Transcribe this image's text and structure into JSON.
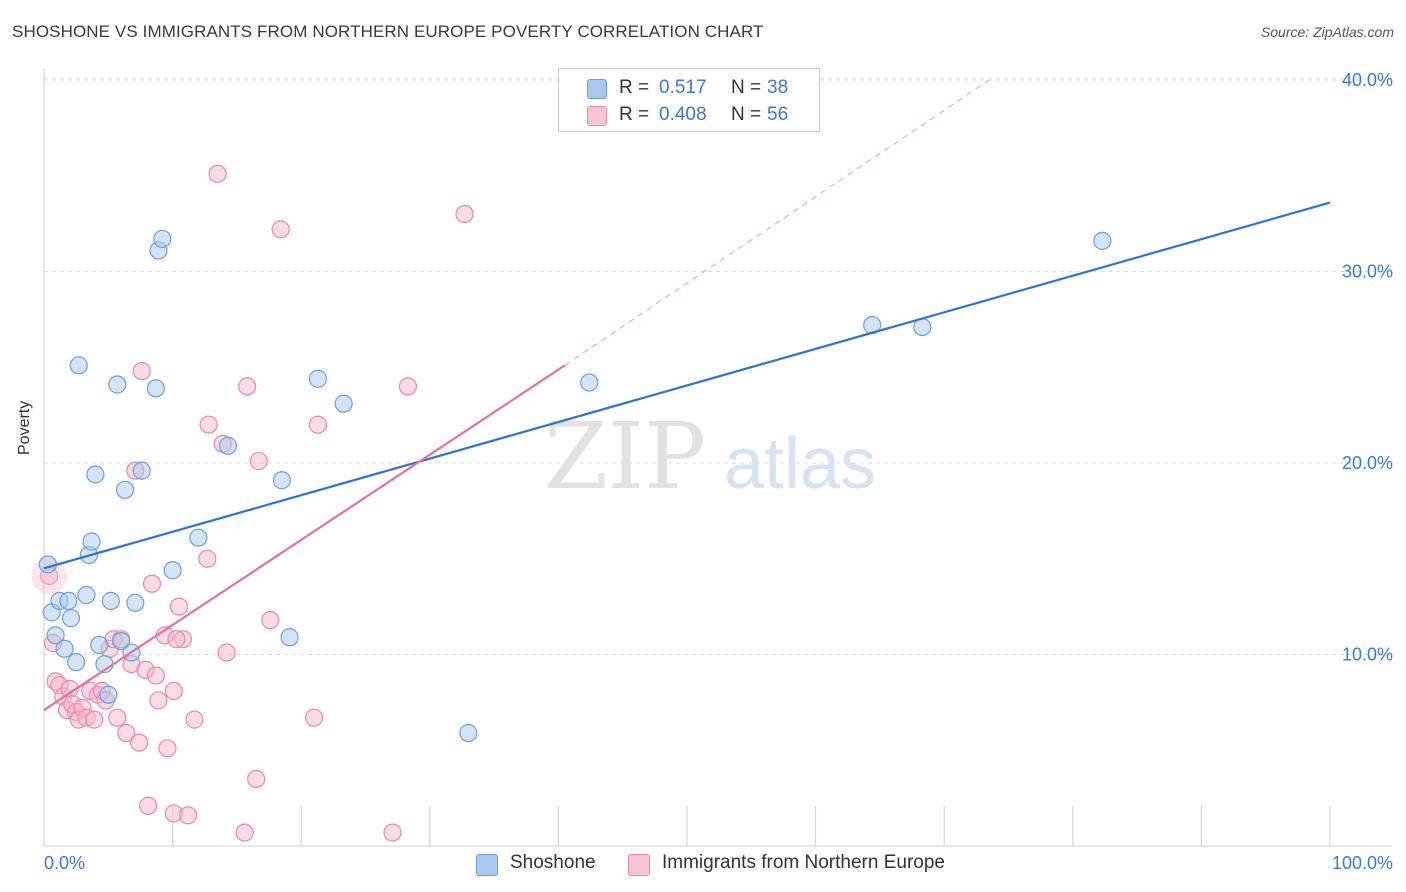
{
  "title": "SHOSHONE VS IMMIGRANTS FROM NORTHERN EUROPE POVERTY CORRELATION CHART",
  "source": "Source: ZipAtlas.com",
  "watermark": {
    "zip": "ZIP",
    "atlas": "atlas"
  },
  "legend_top": [
    {
      "r_label": "R =",
      "r_value": "0.517",
      "n_label": "N =",
      "n_value": "38"
    },
    {
      "r_label": "R =",
      "r_value": "0.408",
      "n_label": "N =",
      "n_value": "56"
    }
  ],
  "legend_bottom": [
    {
      "label": "Shoshone"
    },
    {
      "label": "Immigrants from Northern Europe"
    }
  ],
  "colors": {
    "blue_fill": "#a9c8f0",
    "blue_stroke": "#6d9fdd",
    "blue_line": "#2f72d0",
    "pink_fill": "#f7b8cc",
    "pink_stroke": "#e889a8",
    "pink_line": "#e8709a",
    "axis_text": "#3b78d8"
  },
  "chart_data": {
    "type": "scatter",
    "title": "SHOSHONE VS IMMIGRANTS FROM NORTHERN EUROPE POVERTY CORRELATION CHART",
    "xlabel": "",
    "ylabel": "Poverty",
    "xlim": [
      0,
      100
    ],
    "ylim": [
      0,
      40
    ],
    "x_tick_labels": [
      {
        "value": 0,
        "label": "0.0%"
      },
      {
        "value": 100,
        "label": "100.0%"
      }
    ],
    "y_tick_labels": [
      {
        "value": 10,
        "label": "10.0%"
      },
      {
        "value": 20,
        "label": "20.0%"
      },
      {
        "value": 30,
        "label": "30.0%"
      },
      {
        "value": 40,
        "label": "40.0%"
      }
    ],
    "series": [
      {
        "name": "Shoshone",
        "color": "blue",
        "points": [
          [
            0.3,
            14.7
          ],
          [
            0.6,
            12.2
          ],
          [
            0.9,
            11.0
          ],
          [
            1.2,
            12.8
          ],
          [
            1.6,
            10.3
          ],
          [
            1.9,
            12.8
          ],
          [
            2.1,
            11.9
          ],
          [
            2.5,
            9.6
          ],
          [
            2.7,
            25.1
          ],
          [
            3.3,
            13.1
          ],
          [
            3.5,
            15.2
          ],
          [
            3.7,
            15.9
          ],
          [
            4.0,
            19.4
          ],
          [
            4.3,
            10.5
          ],
          [
            4.7,
            9.5
          ],
          [
            5.0,
            7.9
          ],
          [
            5.2,
            12.8
          ],
          [
            5.7,
            24.1
          ],
          [
            6.0,
            10.7
          ],
          [
            6.3,
            18.6
          ],
          [
            6.8,
            10.1
          ],
          [
            7.1,
            12.7
          ],
          [
            7.6,
            19.6
          ],
          [
            8.7,
            23.9
          ],
          [
            8.9,
            31.1
          ],
          [
            9.2,
            31.7
          ],
          [
            10.0,
            14.4
          ],
          [
            12.0,
            16.1
          ],
          [
            14.3,
            20.9
          ],
          [
            18.5,
            19.1
          ],
          [
            19.1,
            10.9
          ],
          [
            21.3,
            24.4
          ],
          [
            23.3,
            23.1
          ],
          [
            33.0,
            5.9
          ],
          [
            42.4,
            24.2
          ],
          [
            64.4,
            27.2
          ],
          [
            68.3,
            27.1
          ],
          [
            82.3,
            31.6
          ]
        ]
      },
      {
        "name": "Immigrants from Northern Europe",
        "color": "pink",
        "points": [
          [
            0.4,
            14.1
          ],
          [
            0.7,
            10.6
          ],
          [
            0.9,
            8.6
          ],
          [
            1.2,
            8.4
          ],
          [
            1.5,
            7.8
          ],
          [
            1.8,
            7.1
          ],
          [
            2.0,
            8.2
          ],
          [
            2.2,
            7.4
          ],
          [
            2.5,
            7.0
          ],
          [
            2.7,
            6.6
          ],
          [
            3.0,
            7.2
          ],
          [
            3.3,
            6.7
          ],
          [
            3.6,
            8.1
          ],
          [
            3.9,
            6.6
          ],
          [
            4.2,
            7.9
          ],
          [
            4.5,
            8.1
          ],
          [
            4.8,
            7.6
          ],
          [
            5.1,
            10.3
          ],
          [
            5.4,
            10.8
          ],
          [
            5.7,
            6.7
          ],
          [
            6.0,
            10.8
          ],
          [
            6.4,
            5.9
          ],
          [
            6.8,
            9.5
          ],
          [
            7.1,
            19.6
          ],
          [
            7.4,
            5.4
          ],
          [
            7.6,
            24.8
          ],
          [
            7.9,
            9.2
          ],
          [
            8.1,
            2.1
          ],
          [
            8.4,
            13.7
          ],
          [
            8.7,
            8.9
          ],
          [
            8.9,
            7.6
          ],
          [
            9.4,
            11.0
          ],
          [
            9.6,
            5.1
          ],
          [
            10.1,
            8.1
          ],
          [
            10.1,
            1.7
          ],
          [
            10.5,
            12.5
          ],
          [
            10.8,
            10.8
          ],
          [
            11.2,
            1.6
          ],
          [
            11.7,
            6.6
          ],
          [
            12.7,
            15.0
          ],
          [
            13.5,
            35.1
          ],
          [
            13.9,
            21.0
          ],
          [
            14.2,
            10.1
          ],
          [
            15.8,
            24.0
          ],
          [
            15.6,
            0.7
          ],
          [
            16.5,
            3.5
          ],
          [
            16.7,
            20.1
          ],
          [
            17.6,
            11.8
          ],
          [
            18.4,
            32.2
          ],
          [
            21.0,
            6.7
          ],
          [
            21.3,
            22.0
          ],
          [
            27.1,
            0.7
          ],
          [
            28.3,
            24.0
          ],
          [
            32.7,
            33.0
          ],
          [
            12.8,
            22.0
          ],
          [
            10.3,
            10.8
          ]
        ]
      }
    ],
    "trend_lines": [
      {
        "series": "Shoshone",
        "x": [
          0,
          100
        ],
        "y": [
          14.5,
          33.6
        ],
        "style": "solid"
      },
      {
        "series": "Immigrants from Northern Europe",
        "x": [
          0,
          40.5
        ],
        "y": [
          7.1,
          25.1
        ],
        "style": "solid"
      },
      {
        "series": "Immigrants from Northern Europe",
        "x": [
          40.5,
          73.5
        ],
        "y": [
          25.1,
          40.0
        ],
        "style": "dashed"
      }
    ],
    "grid": true
  }
}
